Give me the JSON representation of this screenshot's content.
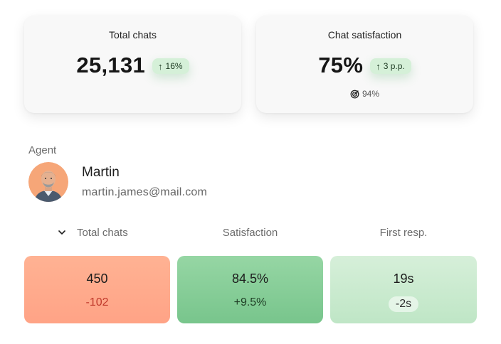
{
  "kpis": {
    "total_chats": {
      "title": "Total chats",
      "value": "25,131",
      "delta": "16%",
      "delta_direction": "up"
    },
    "chat_satisfaction": {
      "title": "Chat satisfaction",
      "value": "75%",
      "delta": "3 p.p.",
      "delta_direction": "up",
      "target": "94%"
    }
  },
  "agent": {
    "label": "Agent",
    "name": "Martin",
    "email": "martin.james@mail.com"
  },
  "metrics_table": {
    "columns": [
      "Total chats",
      "Satisfaction",
      "First resp."
    ],
    "sorted_column": "Total chats",
    "row": {
      "total_chats": {
        "value": "450",
        "delta": "-102"
      },
      "satisfaction": {
        "value": "84.5%",
        "delta": "+9.5%"
      },
      "first_response": {
        "value": "19s",
        "delta": "-2s"
      }
    }
  },
  "colors": {
    "negative_cell": "#ffa386",
    "positive_cell": "#78c58c",
    "light_positive_cell": "#bfe6c6",
    "delta_pill": "#d5f0d8",
    "negative_text": "#c0392b"
  }
}
